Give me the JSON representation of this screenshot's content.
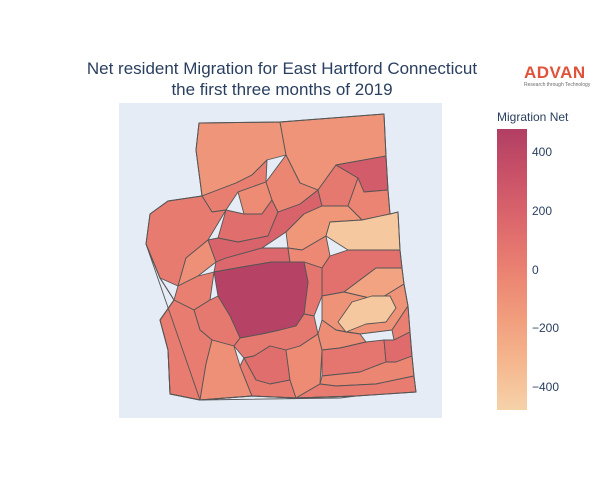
{
  "title": {
    "line1": "Net resident Migration for East Hartford Connecticut",
    "line2": "the first three months of 2019"
  },
  "logo": {
    "word": "ADVAN",
    "tagline": "Research through Technology"
  },
  "colorbar": {
    "title": "Migration Net",
    "min": -480,
    "max": 480,
    "ticks": [
      {
        "label": "400",
        "value": 400
      },
      {
        "label": "200",
        "value": 200
      },
      {
        "label": "0",
        "value": 0
      },
      {
        "label": "−200",
        "value": -200
      },
      {
        "label": "−400",
        "value": -400
      }
    ],
    "colorscale": [
      "#f6d2a9",
      "#f5b78e",
      "#f19c7c",
      "#ea8171",
      "#dd686c",
      "#ca5268",
      "#b13f64"
    ]
  },
  "map": {
    "background": "#e5ecf6",
    "border_color": "#555555",
    "regions": [
      {
        "id": "r1",
        "value": -120
      },
      {
        "id": "r2",
        "value": -110
      },
      {
        "id": "r3",
        "value": 20
      },
      {
        "id": "r4",
        "value": 40
      },
      {
        "id": "r5",
        "value": -90
      },
      {
        "id": "r6",
        "value": 10
      },
      {
        "id": "r7",
        "value": -60
      },
      {
        "id": "r8",
        "value": 120
      },
      {
        "id": "r9",
        "value": 200
      },
      {
        "id": "r10",
        "value": -30
      },
      {
        "id": "r11",
        "value": 60
      },
      {
        "id": "r12",
        "value": 250
      },
      {
        "id": "r13",
        "value": -20
      },
      {
        "id": "r14",
        "value": -130
      },
      {
        "id": "r15",
        "value": -420
      },
      {
        "id": "r16",
        "value": 170
      },
      {
        "id": "r17",
        "value": -40
      },
      {
        "id": "r18",
        "value": 100
      },
      {
        "id": "r19",
        "value": 80
      },
      {
        "id": "r20",
        "value": -210
      },
      {
        "id": "r21",
        "value": -100
      },
      {
        "id": "r22",
        "value": 10
      },
      {
        "id": "r23",
        "value": -420
      },
      {
        "id": "r24",
        "value": 450
      },
      {
        "id": "r25",
        "value": 50
      },
      {
        "id": "r26",
        "value": 30
      },
      {
        "id": "r27",
        "value": -80
      },
      {
        "id": "r28",
        "value": 60
      },
      {
        "id": "r29",
        "value": 120
      },
      {
        "id": "r30",
        "value": 40
      },
      {
        "id": "r31",
        "value": -60
      },
      {
        "id": "r32",
        "value": -70
      },
      {
        "id": "r33",
        "value": 80
      },
      {
        "id": "r34",
        "value": 140
      },
      {
        "id": "r35",
        "value": -30
      },
      {
        "id": "r36",
        "value": 30
      },
      {
        "id": "r37",
        "value": 110
      }
    ]
  }
}
